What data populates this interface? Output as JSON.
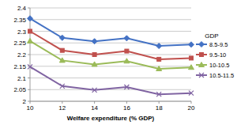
{
  "chart_data": {
    "type": "line",
    "x_label": "Welfare expenditure (% GDP)",
    "legend_title": "GDP",
    "x": [
      10,
      12,
      14,
      16,
      18,
      20
    ],
    "xlim": [
      10,
      20
    ],
    "xticks": [
      10,
      12,
      14,
      16,
      18,
      20
    ],
    "ylim": [
      2,
      2.4
    ],
    "yticks": [
      2,
      2.05,
      2.1,
      2.15,
      2.2,
      2.25,
      2.3,
      2.35,
      2.4
    ],
    "grid": true,
    "legend": "right",
    "series": [
      {
        "name": "8.5-9.5",
        "color": "#4472c4",
        "marker": "diamond",
        "line_style": "solid",
        "values": [
          2.355,
          2.272,
          2.257,
          2.27,
          2.237,
          2.243
        ]
      },
      {
        "name": "9.5-10",
        "color": "#c0504d",
        "marker": "square",
        "line_style": "solid",
        "values": [
          2.3,
          2.218,
          2.2,
          2.215,
          2.18,
          2.185
        ]
      },
      {
        "name": "10-10.5",
        "color": "#9bbb59",
        "marker": "triangle",
        "line_style": "solid",
        "values": [
          2.258,
          2.175,
          2.158,
          2.172,
          2.139,
          2.145
        ]
      },
      {
        "name": "10.5-11.5",
        "color": "#8064a2",
        "marker": "x",
        "line_style": "solid",
        "values": [
          2.148,
          2.065,
          2.048,
          2.061,
          2.03,
          2.035
        ]
      }
    ]
  }
}
